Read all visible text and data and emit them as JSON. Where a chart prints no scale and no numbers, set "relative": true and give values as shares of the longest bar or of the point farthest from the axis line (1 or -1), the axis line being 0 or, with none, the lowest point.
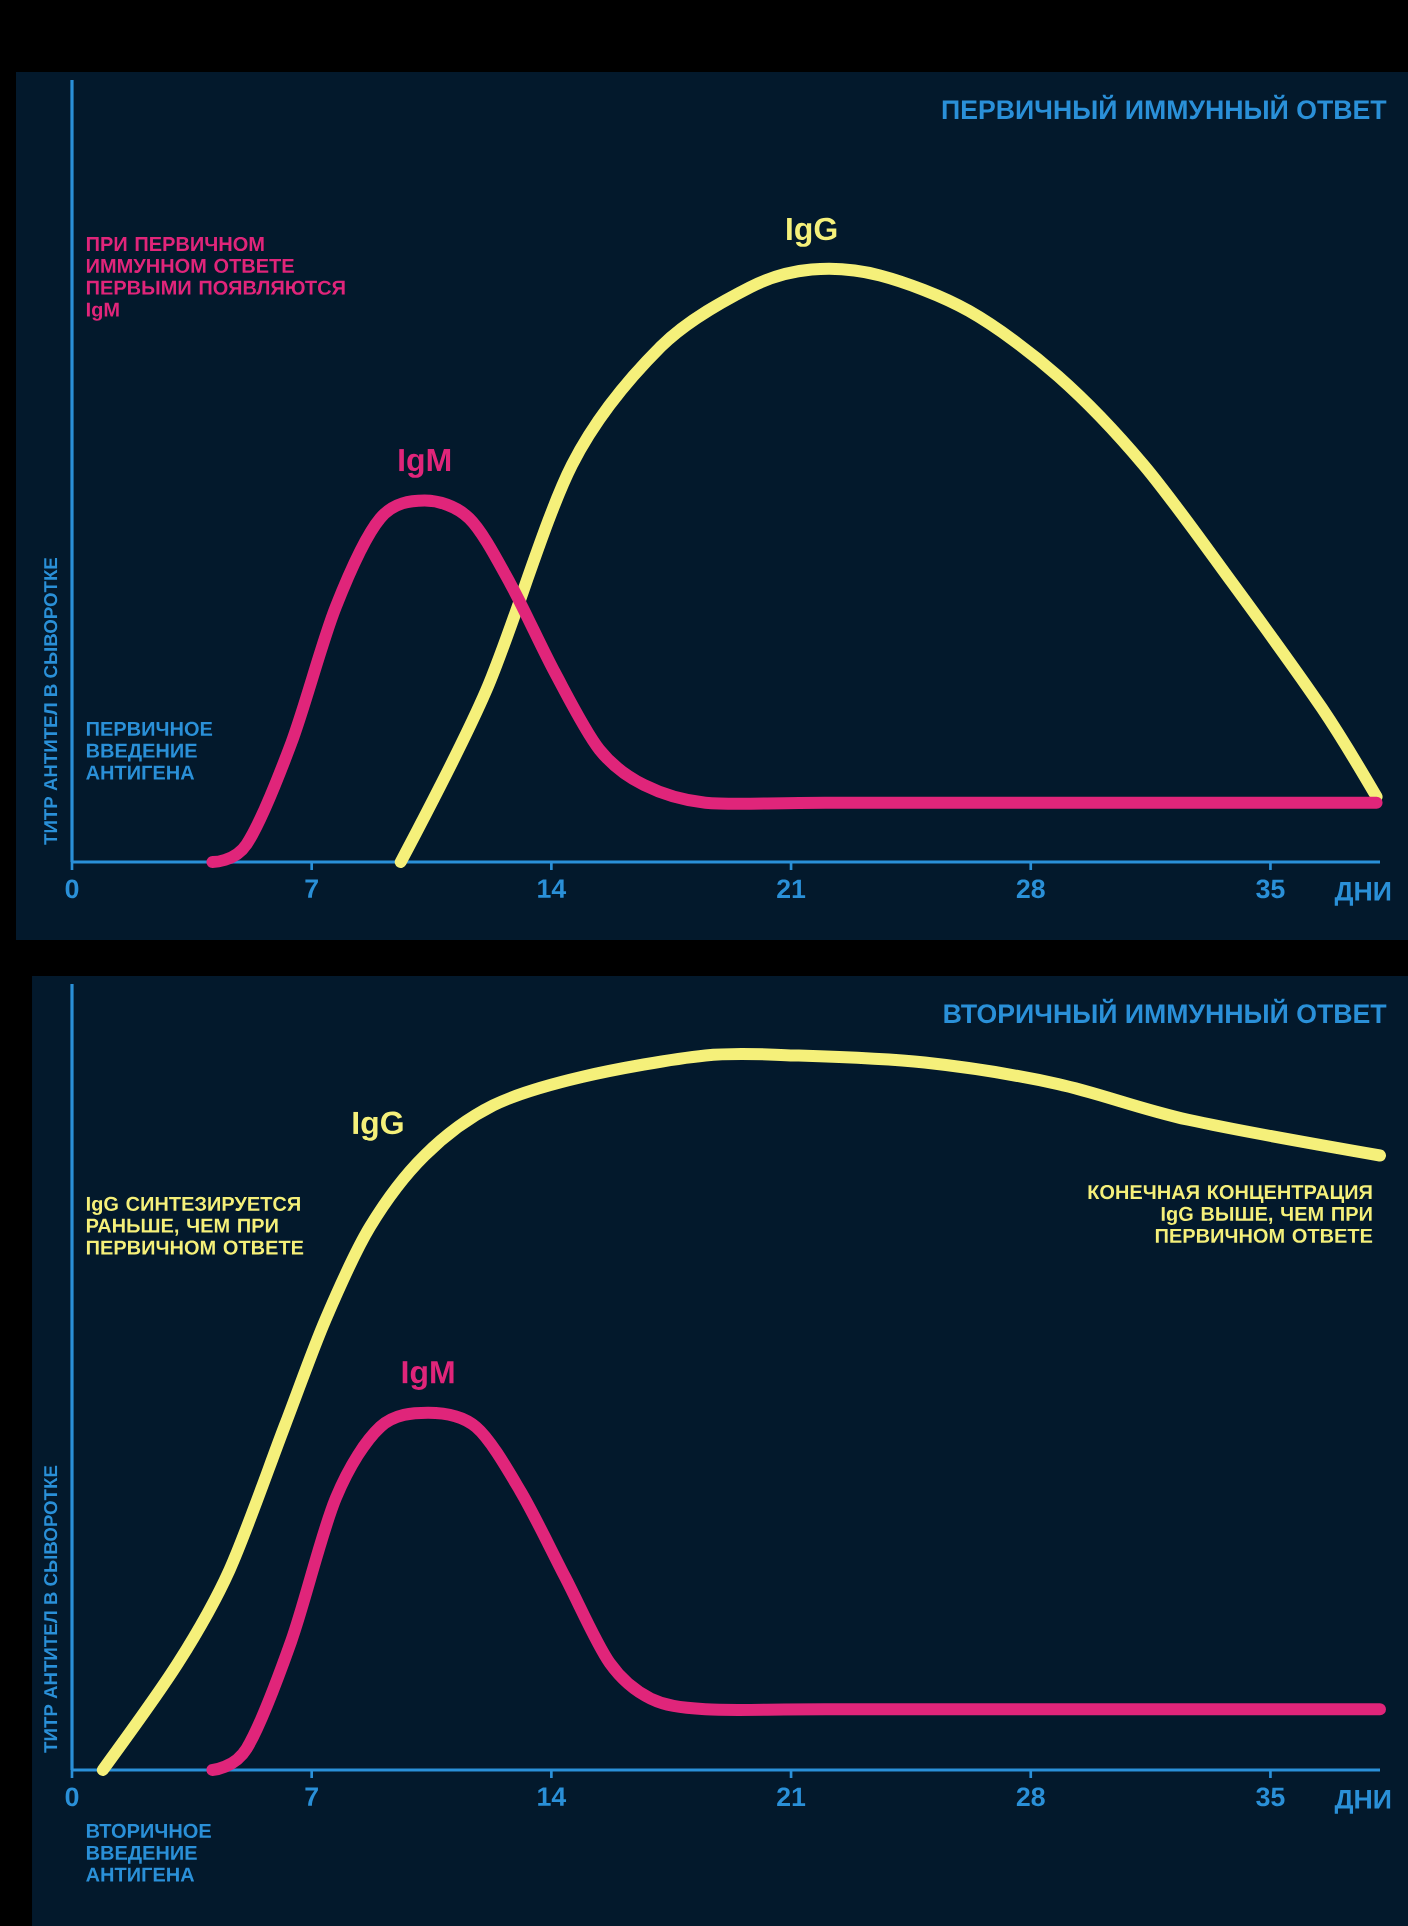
{
  "chart_data": [
    {
      "type": "line",
      "title": "ПЕРВИЧНЫЙ ИММУННЫЙ ОТВЕТ",
      "xlabel": "ДНИ",
      "ylabel": "ТИТР АНТИТЕЛ В СЫВОРОТКЕ",
      "relative": true,
      "xlim": [
        0,
        38.2
      ],
      "xticks": [
        0,
        7,
        14,
        21,
        28,
        35
      ],
      "annotations": [
        "ПРИ ПЕРВИЧНОМ ИММУННОМ ОТВЕТЕ ПЕРВЫМИ ПОЯВЛЯЮТСЯ IgM",
        "ПЕРВИЧНОЕ ВВЕДЕНИЕ АНТИГЕНА"
      ],
      "series": [
        {
          "name": "IgG",
          "color": "#f5f07a",
          "x": [
            9.6,
            12.1,
            14.6,
            17.2,
            19.8,
            21.6,
            23.6,
            26.2,
            28.8,
            31.3,
            33.9,
            36.5,
            38.1
          ],
          "values": [
            0,
            0.29,
            0.67,
            0.87,
            0.97,
            1.0,
            0.99,
            0.93,
            0.82,
            0.67,
            0.47,
            0.26,
            0.11
          ]
        },
        {
          "name": "IgM",
          "color": "#e0257a",
          "x": [
            4.1,
            5.1,
            6.4,
            7.7,
            9.0,
            10.3,
            11.6,
            12.8,
            14.1,
            15.4,
            16.7,
            18.5,
            22,
            30,
            38.1
          ],
          "values": [
            0,
            0.03,
            0.2,
            0.43,
            0.58,
            0.61,
            0.58,
            0.47,
            0.32,
            0.19,
            0.13,
            0.1,
            0.1,
            0.1,
            0.1
          ]
        }
      ]
    },
    {
      "type": "line",
      "title": "ВТОРИЧНЫЙ ИММУННЫЙ ОТВЕТ",
      "xlabel": "ДНИ",
      "ylabel": "ТИТР АНТИТЕЛ В СЫВОРОТКЕ",
      "relative": true,
      "xlim": [
        0,
        38.2
      ],
      "xticks": [
        0,
        7,
        14,
        21,
        28,
        35
      ],
      "annotations": [
        "IgG СИНТЕЗИРУЕТСЯ РАНЬШЕ, ЧЕМ ПРИ ПЕРВИЧНОМ ОТВЕТЕ",
        "КОНЕЧНАЯ КОНЦЕНТРАЦИЯ IgG ВЫШЕ, ЧЕМ ПРИ ПЕРВИЧНОМ ОТВЕТЕ",
        "ВТОРИЧНОЕ ВВЕДЕНИЕ АНТИГЕНА"
      ],
      "series": [
        {
          "name": "IgG",
          "color": "#f5f07a",
          "x": [
            0.9,
            3.1,
            4.6,
            6.2,
            7.4,
            8.7,
            10.3,
            12.3,
            14.9,
            18.5,
            21.1,
            24.9,
            28.8,
            32.6,
            38.2
          ],
          "values": [
            0,
            0.15,
            0.28,
            0.48,
            0.63,
            0.76,
            0.86,
            0.93,
            0.97,
            1.0,
            1.0,
            0.99,
            0.96,
            0.91,
            0.86
          ]
        },
        {
          "name": "IgM",
          "color": "#e0257a",
          "x": [
            4.1,
            5.1,
            6.4,
            7.7,
            9.0,
            10.4,
            11.8,
            13.1,
            14.4,
            15.7,
            16.9,
            18.5,
            22,
            30,
            38.2
          ],
          "values": [
            0,
            0.03,
            0.18,
            0.38,
            0.48,
            0.5,
            0.48,
            0.39,
            0.27,
            0.15,
            0.1,
            0.085,
            0.085,
            0.085,
            0.085
          ]
        }
      ]
    }
  ]
}
